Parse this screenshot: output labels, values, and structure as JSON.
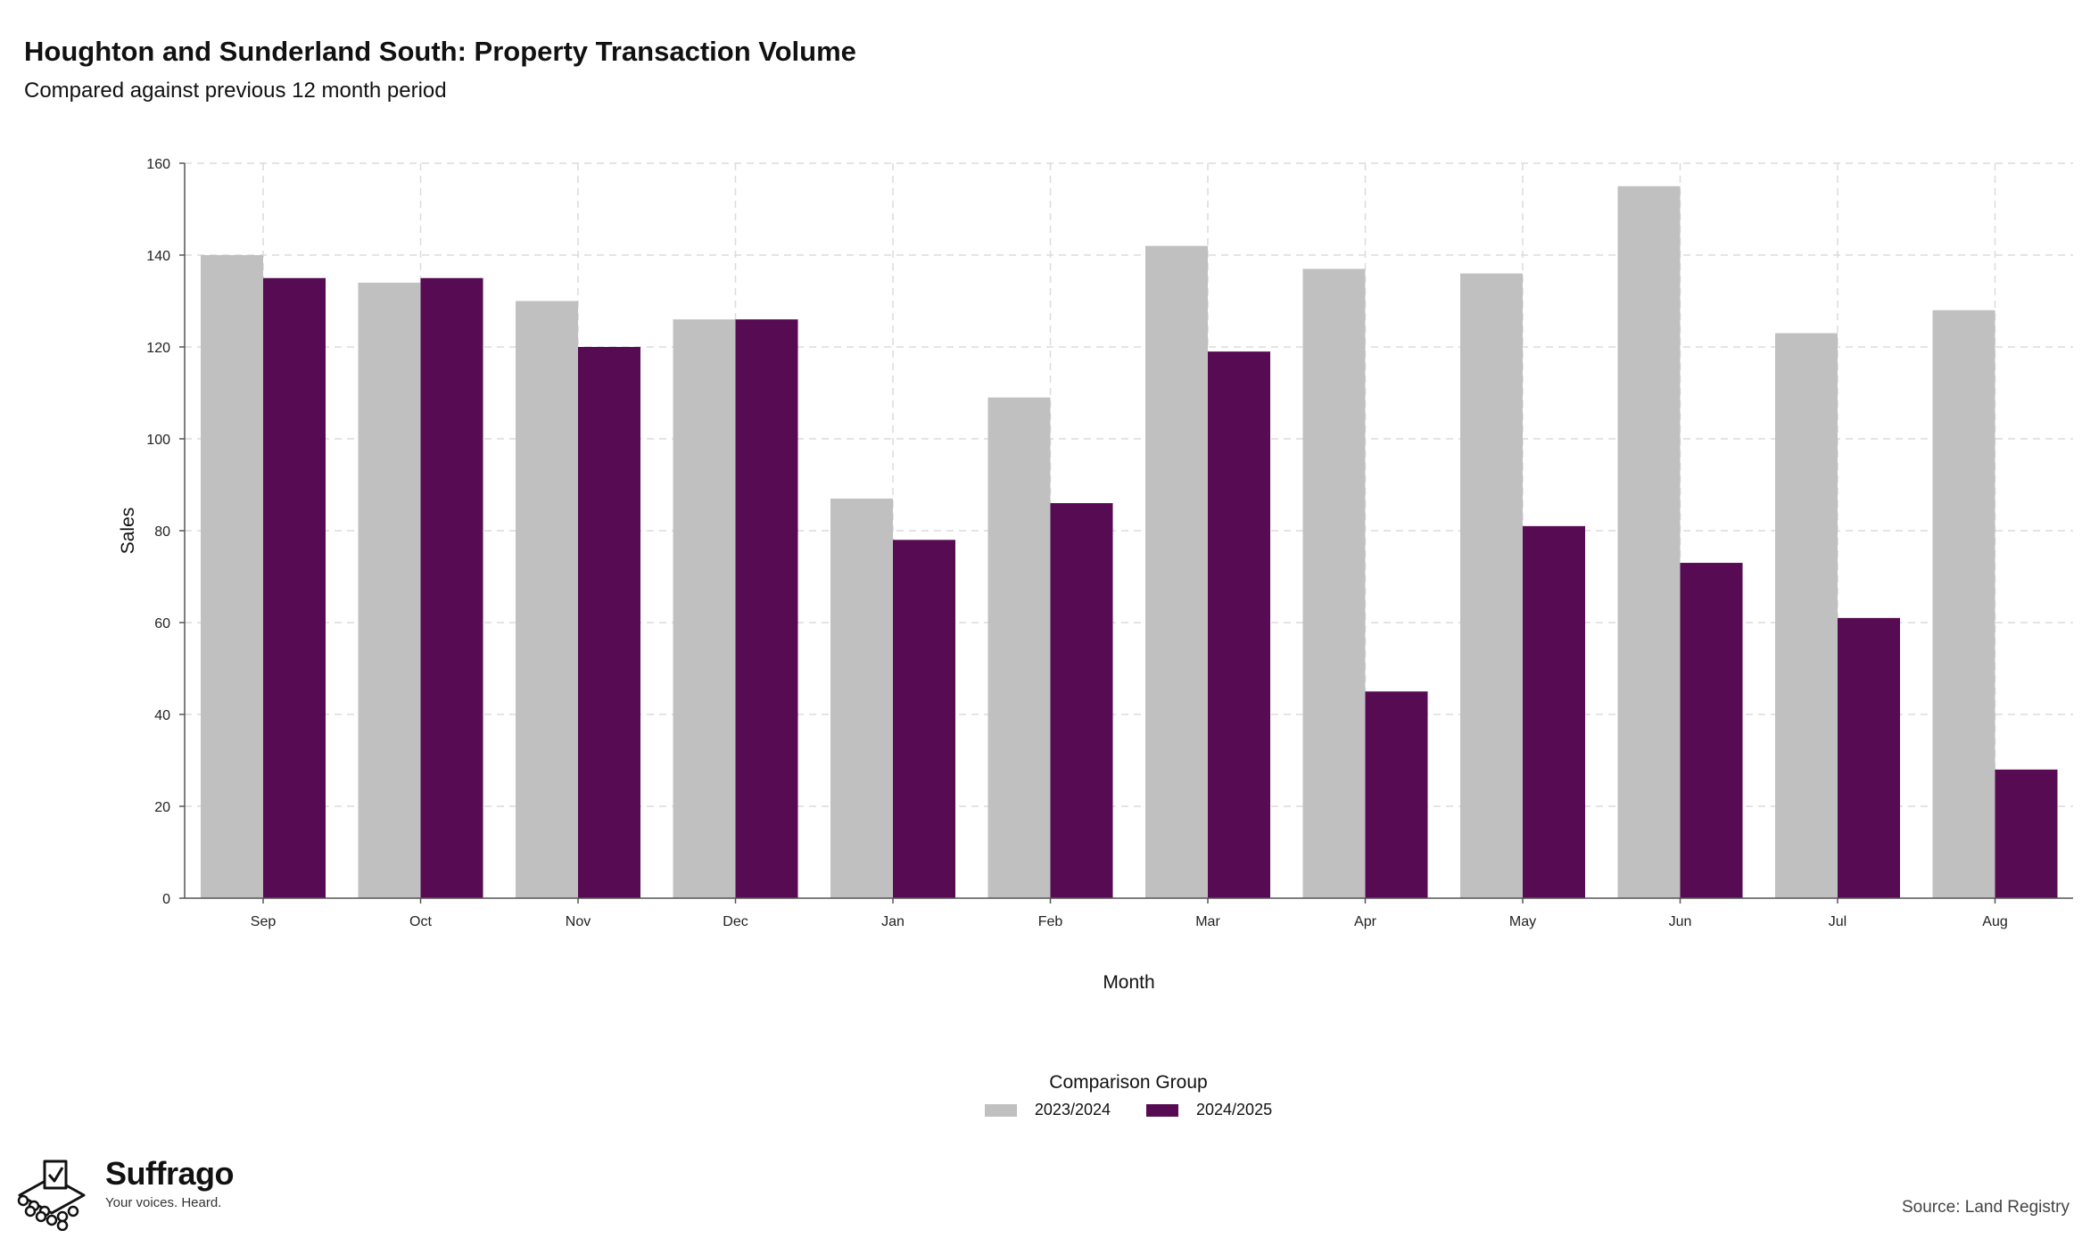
{
  "header": {
    "title": "Houghton and Sunderland South: Property Transaction Volume",
    "subtitle": "Compared against previous 12 month period"
  },
  "chart_data": {
    "type": "bar",
    "categories": [
      "Sep",
      "Oct",
      "Nov",
      "Dec",
      "Jan",
      "Feb",
      "Mar",
      "Apr",
      "May",
      "Jun",
      "Jul",
      "Aug"
    ],
    "series": [
      {
        "name": "2023/2024",
        "color": "#c0c0c0",
        "values": [
          140,
          134,
          130,
          126,
          87,
          109,
          142,
          137,
          136,
          155,
          123,
          128
        ]
      },
      {
        "name": "2024/2025",
        "color": "#560b52",
        "values": [
          135,
          135,
          120,
          126,
          78,
          86,
          119,
          45,
          81,
          73,
          61,
          28
        ]
      }
    ],
    "xlabel": "Month",
    "ylabel": "Sales",
    "ylim": [
      0,
      160
    ],
    "yticks": [
      0,
      20,
      40,
      60,
      80,
      100,
      120,
      140,
      160
    ],
    "grid": true,
    "legend_title": "Comparison Group",
    "legend_position": "bottom-center"
  },
  "footer": {
    "brand": "Suffrago",
    "tagline": "Your voices. Heard.",
    "source": "Source: Land Registry"
  },
  "icons": {
    "logo": "ballot-box-icon"
  }
}
